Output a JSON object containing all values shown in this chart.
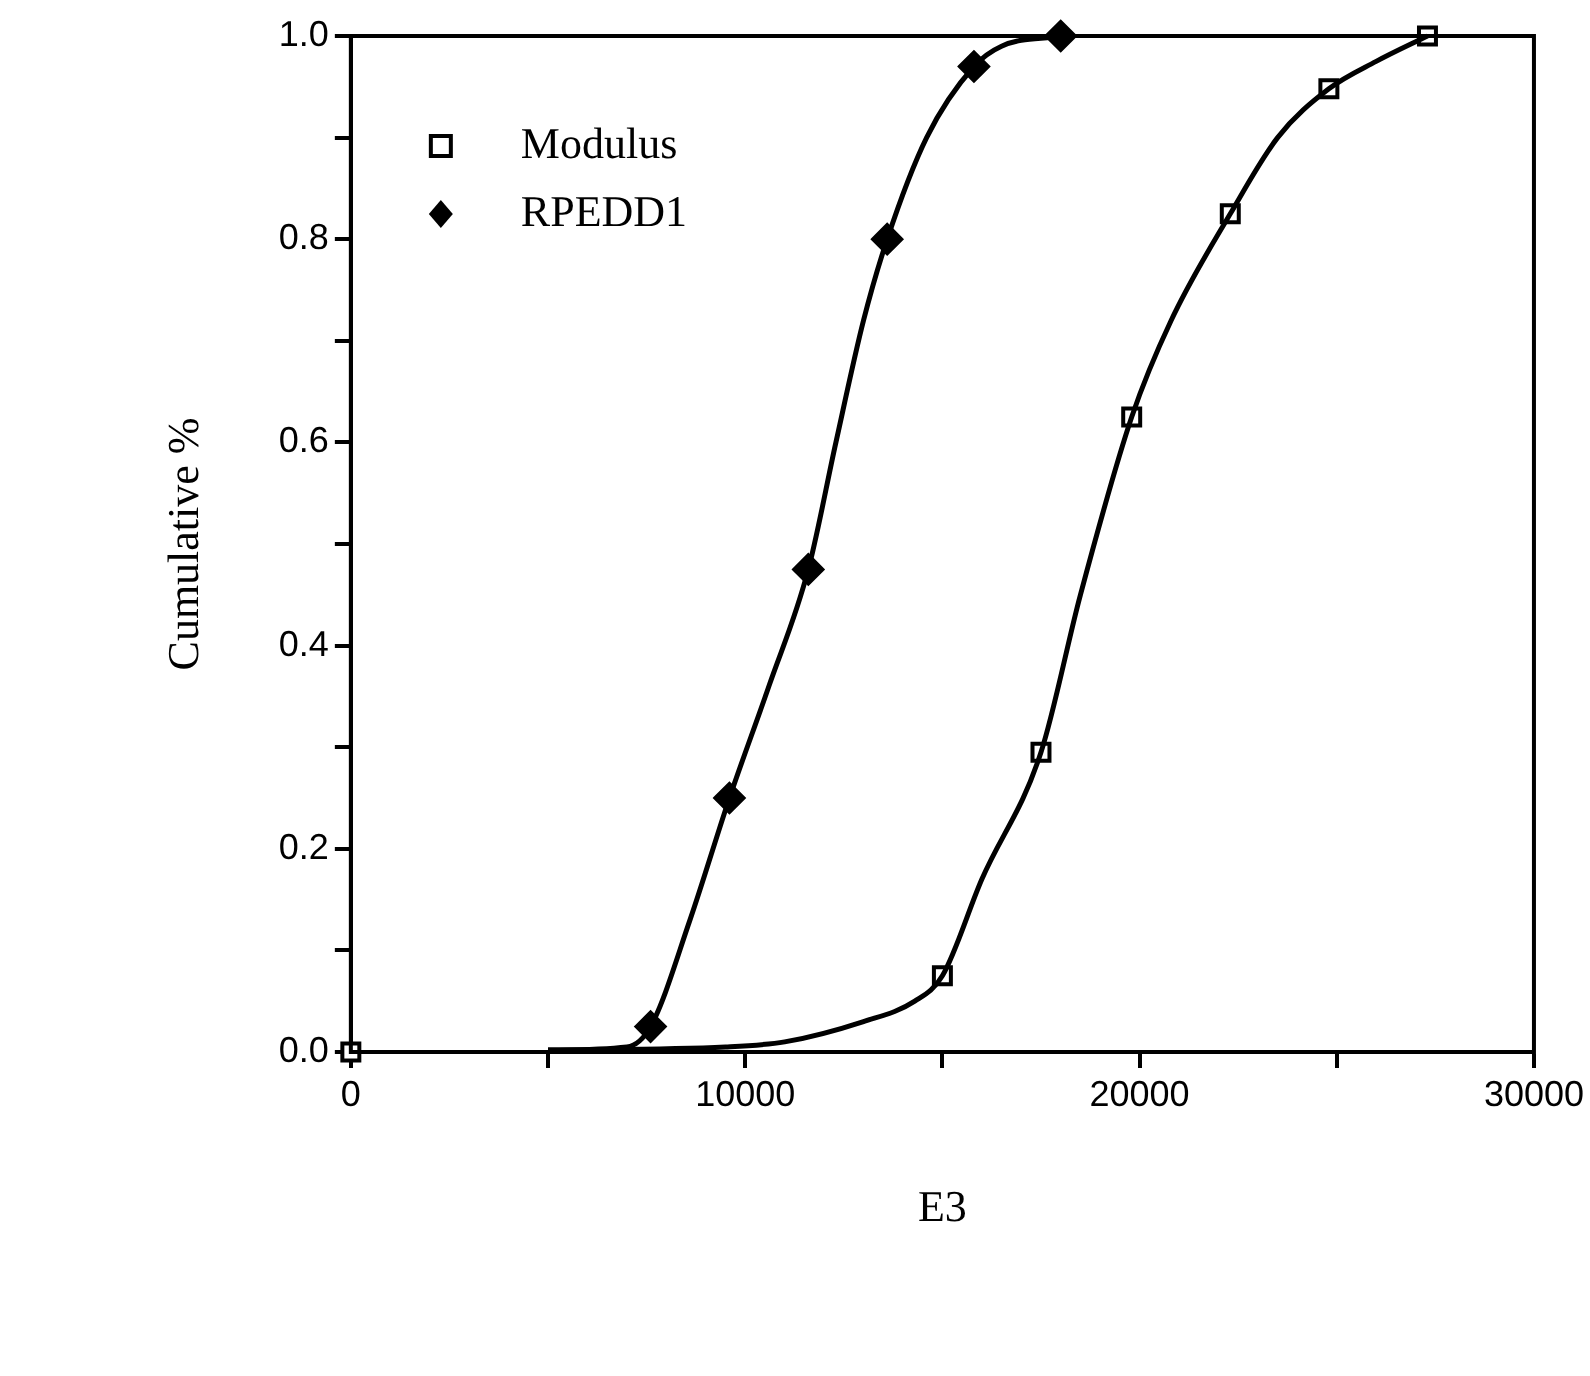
{
  "chart_data": {
    "type": "scatter",
    "xlabel": "E3",
    "ylabel": "Cumulative %",
    "xlim": [
      0,
      30000
    ],
    "ylim": [
      0,
      1
    ],
    "xticks": [
      0,
      {
        "value": 5000,
        "label": null
      },
      10000,
      {
        "value": 15000,
        "label": null
      },
      20000,
      {
        "value": 25000,
        "label": null
      },
      30000
    ],
    "yticks": [
      {
        "value": 0,
        "label": "0.0"
      },
      {
        "value": 0.1,
        "label": null
      },
      {
        "value": 0.2,
        "label": "0.2"
      },
      {
        "value": 0.3,
        "label": null
      },
      {
        "value": 0.4,
        "label": "0.4"
      },
      {
        "value": 0.5,
        "label": null
      },
      {
        "value": 0.6,
        "label": "0.6"
      },
      {
        "value": 0.7,
        "label": null
      },
      {
        "value": 0.8,
        "label": "0.8"
      },
      {
        "value": 0.9,
        "label": null
      },
      {
        "value": 1,
        "label": "1.0"
      }
    ],
    "grid": false,
    "legend": "top left",
    "series": [
      {
        "type": "line",
        "color": "#000000",
        "marker": "none",
        "line_style": "solid",
        "x": [
          5000,
          9500,
          11000,
          13000,
          14300,
          15000,
          16000,
          17500,
          18500,
          19800,
          20800,
          22300,
          23500,
          24800,
          26000,
          27300
        ],
        "values": [
          0.002,
          0.005,
          0.01,
          0.03,
          0.05,
          0.075,
          0.17,
          0.295,
          0.45,
          0.625,
          0.72,
          0.825,
          0.9,
          0.948,
          0.975,
          1.0
        ]
      },
      {
        "type": "line",
        "color": "#000000",
        "marker": "none",
        "line_style": "solid",
        "x": [
          5000,
          7000,
          7600,
          8600,
          9600,
          10600,
          11600,
          12300,
          13000,
          13600,
          14600,
          15800,
          16500,
          18000
        ],
        "values": [
          0.002,
          0.005,
          0.025,
          0.13,
          0.25,
          0.36,
          0.475,
          0.6,
          0.72,
          0.8,
          0.9,
          0.97,
          0.99,
          1.0
        ]
      },
      {
        "type": "scatter",
        "name": "Modulus",
        "color": "#000000",
        "marker": "square",
        "x": [
          0,
          15000,
          17500,
          19800,
          22300,
          24800,
          27300
        ],
        "values": [
          0,
          0.075,
          0.295,
          0.625,
          0.825,
          0.948,
          1.0
        ]
      },
      {
        "type": "scatter",
        "name": "RPEDD1",
        "color": "#000000",
        "marker": "diamond",
        "x": [
          7600,
          9600,
          11600,
          13600,
          15800,
          18000
        ],
        "values": [
          0.025,
          0.25,
          0.475,
          0.8,
          0.97,
          1.0
        ]
      }
    ]
  }
}
